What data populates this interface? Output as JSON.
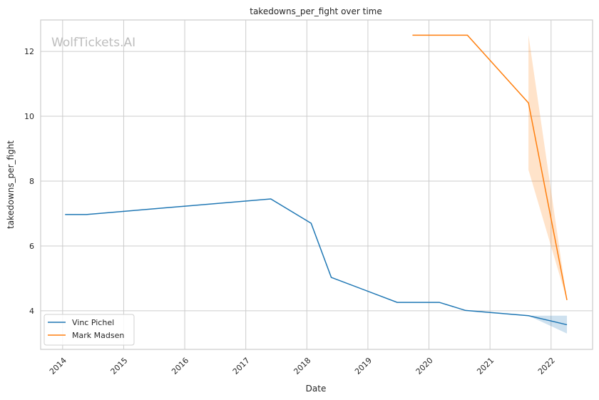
{
  "chart_data": {
    "type": "line",
    "title": "takedowns_per_fight over time",
    "xlabel": "Date",
    "ylabel": "takedowns_per_fight",
    "watermark": "WolfTickets.AI",
    "xlim": [
      2013.64,
      2022.68
    ],
    "ylim": [
      2.81,
      12.97
    ],
    "xticks": [
      2014,
      2015,
      2016,
      2017,
      2018,
      2019,
      2020,
      2021,
      2022
    ],
    "xtick_labels": [
      "2014",
      "2015",
      "2016",
      "2017",
      "2018",
      "2019",
      "2020",
      "2021",
      "2022"
    ],
    "yticks": [
      4,
      6,
      8,
      10,
      12
    ],
    "ytick_labels": [
      "4",
      "6",
      "8",
      "10",
      "12"
    ],
    "grid": true,
    "legend_position": "lower-left",
    "series": [
      {
        "name": "Vinc Pichel",
        "color": "#1f77b4",
        "x": [
          2014.04,
          2014.39,
          2017.41,
          2018.07,
          2018.4,
          2019.48,
          2020.17,
          2020.6,
          2021.63,
          2022.26
        ],
        "y": [
          6.97,
          6.97,
          7.45,
          6.7,
          5.03,
          4.26,
          4.26,
          4.01,
          3.85,
          3.57
        ],
        "ci": {
          "x": [
            2021.63,
            2022.26
          ],
          "lower": [
            3.85,
            3.3
          ],
          "upper": [
            3.85,
            3.85
          ]
        }
      },
      {
        "name": "Mark Madsen",
        "color": "#ff7f0e",
        "x": [
          2019.73,
          2020.63,
          2021.63,
          2022.26
        ],
        "y": [
          12.5,
          12.5,
          10.41,
          4.33
        ],
        "ci": {
          "x": [
            2021.63,
            2022.26
          ],
          "lower": [
            8.35,
            4.33
          ],
          "upper": [
            12.5,
            4.33
          ]
        }
      }
    ]
  }
}
